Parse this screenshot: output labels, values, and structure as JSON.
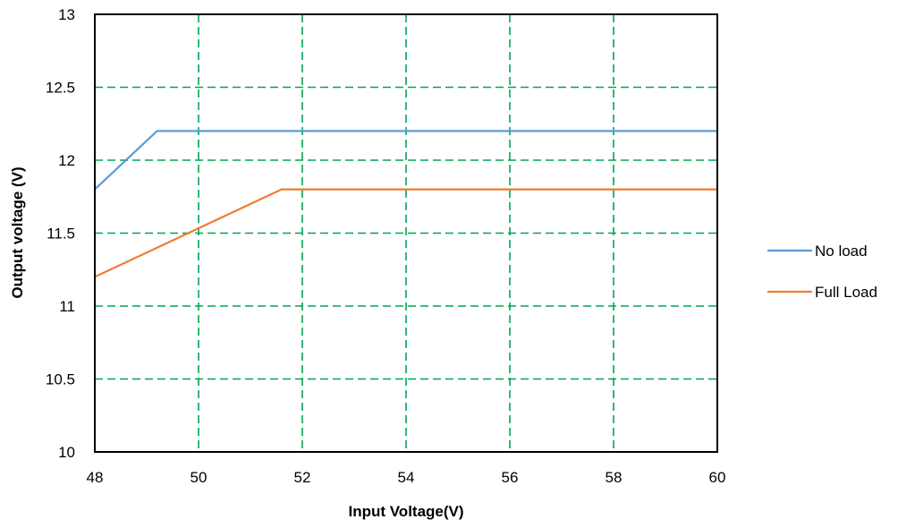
{
  "chart_data": {
    "type": "line",
    "title": "",
    "xlabel": "Input Voltage(V)",
    "ylabel": "Output voltage (V)",
    "xlim": [
      48,
      60
    ],
    "ylim": [
      10,
      13
    ],
    "xticks": [
      48,
      50,
      52,
      54,
      56,
      58,
      60
    ],
    "yticks": [
      10,
      10.5,
      11,
      11.5,
      12,
      12.5,
      13
    ],
    "grid": true,
    "grid_style": "dashed",
    "grid_color": "#00a651",
    "legend_position": "right",
    "series": [
      {
        "name": "No load",
        "color": "#5b9bd5",
        "x": [
          48,
          49.2,
          60
        ],
        "y": [
          11.8,
          12.2,
          12.2
        ]
      },
      {
        "name": "Full Load",
        "color": "#ed7d31",
        "x": [
          48,
          51.6,
          60
        ],
        "y": [
          11.2,
          11.8,
          11.8
        ]
      }
    ]
  }
}
